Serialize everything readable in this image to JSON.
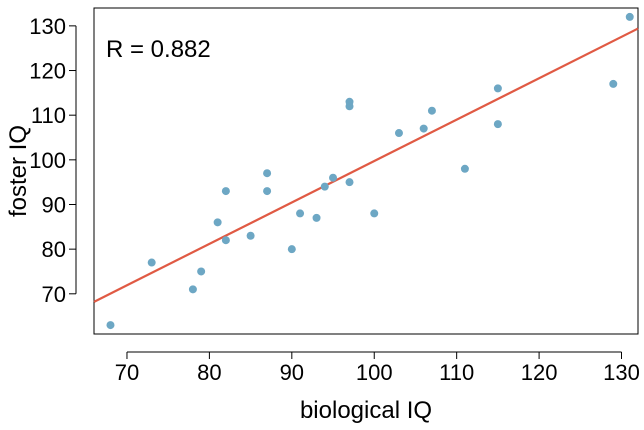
{
  "chart_data": {
    "type": "scatter",
    "xlabel": "biological IQ",
    "ylabel": "foster IQ",
    "annotation": "R =  0.882",
    "xlim": [
      66,
      132
    ],
    "ylim": [
      61,
      134
    ],
    "xticks": [
      70,
      80,
      90,
      100,
      110,
      120,
      130
    ],
    "yticks": [
      70,
      80,
      90,
      100,
      110,
      120,
      130
    ],
    "grid": false,
    "point_color": "#6da7c4",
    "line_color": "#e05a44",
    "points": [
      {
        "x": 68,
        "y": 63
      },
      {
        "x": 73,
        "y": 77
      },
      {
        "x": 78,
        "y": 71
      },
      {
        "x": 79,
        "y": 75
      },
      {
        "x": 81,
        "y": 86
      },
      {
        "x": 82,
        "y": 93
      },
      {
        "x": 82,
        "y": 82
      },
      {
        "x": 85,
        "y": 83
      },
      {
        "x": 87,
        "y": 97
      },
      {
        "x": 87,
        "y": 93
      },
      {
        "x": 90,
        "y": 80
      },
      {
        "x": 91,
        "y": 88
      },
      {
        "x": 93,
        "y": 87
      },
      {
        "x": 94,
        "y": 94
      },
      {
        "x": 95,
        "y": 96
      },
      {
        "x": 97,
        "y": 113
      },
      {
        "x": 97,
        "y": 112
      },
      {
        "x": 97,
        "y": 95
      },
      {
        "x": 100,
        "y": 88
      },
      {
        "x": 103,
        "y": 106
      },
      {
        "x": 106,
        "y": 107
      },
      {
        "x": 107,
        "y": 111
      },
      {
        "x": 111,
        "y": 98
      },
      {
        "x": 115,
        "y": 116
      },
      {
        "x": 115,
        "y": 108
      },
      {
        "x": 129,
        "y": 117
      },
      {
        "x": 131,
        "y": 132
      }
    ],
    "fit_line": {
      "x": [
        66,
        132
      ],
      "y": [
        68.2,
        129.4
      ]
    }
  }
}
